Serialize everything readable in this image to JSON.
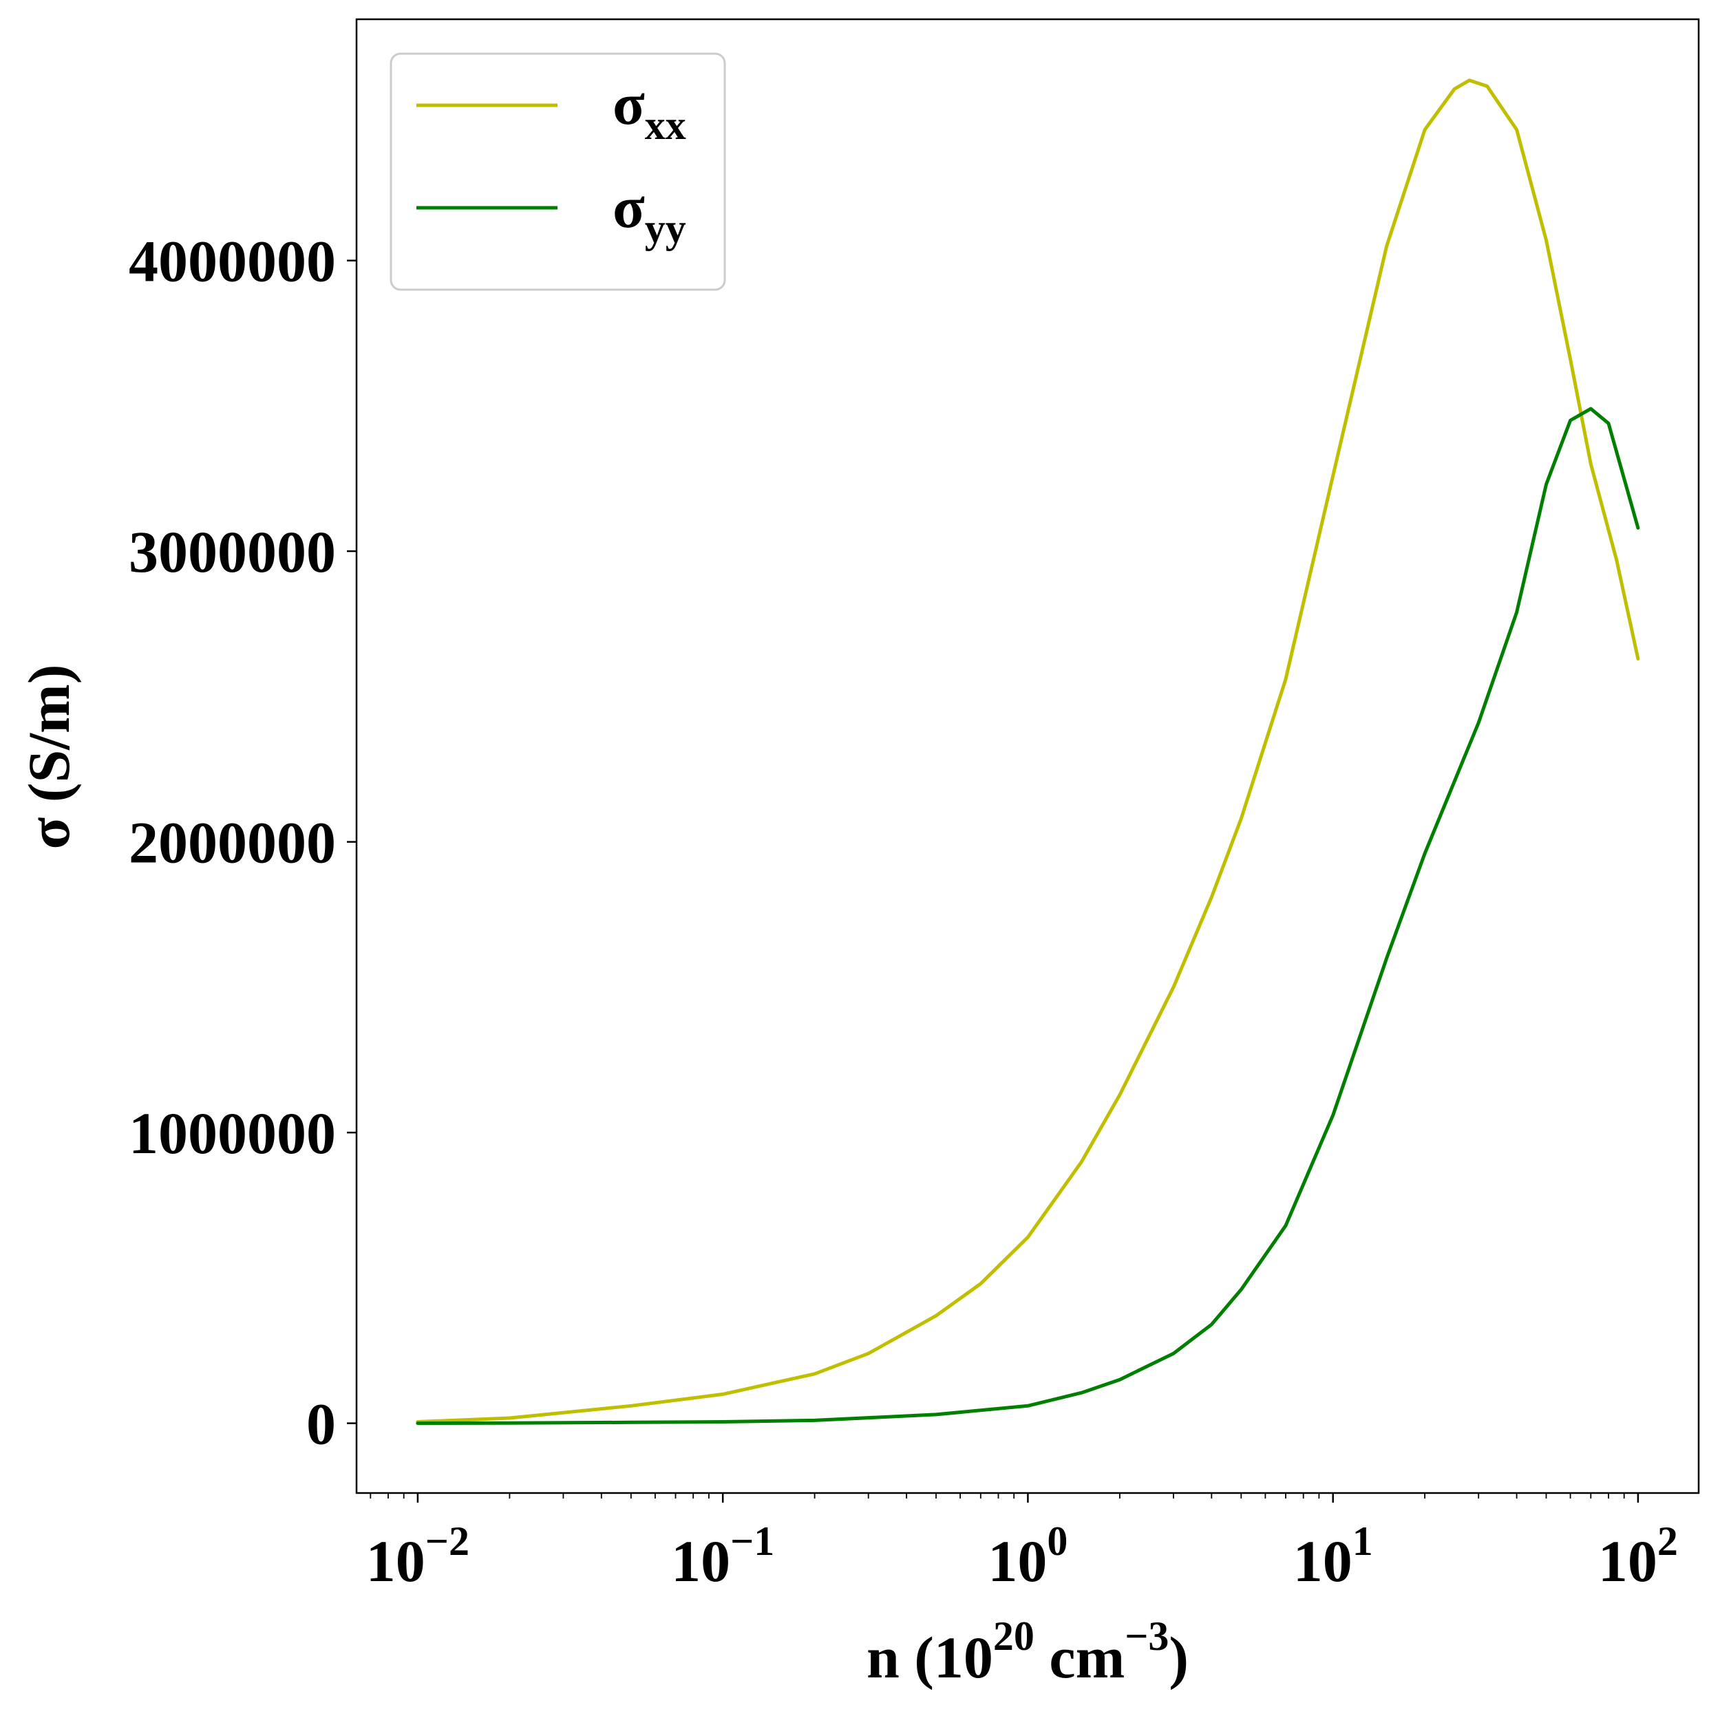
{
  "chart_data": {
    "type": "line",
    "xscale": "log",
    "xlim": [
      0.0063,
      158
    ],
    "ylim": [
      -240000,
      4830000
    ],
    "x_ticks": [
      {
        "value": 0.01,
        "base": "10",
        "exp": "−2"
      },
      {
        "value": 0.1,
        "base": "10",
        "exp": "−1"
      },
      {
        "value": 1,
        "base": "10",
        "exp": "0"
      },
      {
        "value": 10,
        "base": "10",
        "exp": "1"
      },
      {
        "value": 100,
        "base": "10",
        "exp": "2"
      }
    ],
    "y_ticks": [
      {
        "value": 0,
        "label": "0"
      },
      {
        "value": 1000000,
        "label": "1000000"
      },
      {
        "value": 2000000,
        "label": "2000000"
      },
      {
        "value": 3000000,
        "label": "3000000"
      },
      {
        "value": 4000000,
        "label": "4000000"
      }
    ],
    "xlabel": {
      "pre": "n (10",
      "sup1": "20",
      "mid": " cm",
      "sup2": "−3",
      "post": ")"
    },
    "ylabel": "σ (S/m)",
    "grid": false,
    "legend": {
      "position": "top-left"
    },
    "series": [
      {
        "name": "σ",
        "subscript": "xx",
        "color": "#bfbf00",
        "x": [
          0.01,
          0.02,
          0.05,
          0.1,
          0.2,
          0.3,
          0.5,
          0.7,
          1,
          1.5,
          2,
          3,
          4,
          5,
          7,
          10,
          15,
          20,
          25,
          28,
          32,
          40,
          50,
          60,
          70,
          85,
          100
        ],
        "y": [
          5000,
          18000,
          60000,
          100000,
          170000,
          240000,
          370000,
          480000,
          640000,
          900000,
          1130000,
          1500000,
          1810000,
          2080000,
          2560000,
          3260000,
          4050000,
          4450000,
          4590000,
          4620000,
          4600000,
          4450000,
          4070000,
          3660000,
          3300000,
          2970000,
          2630000
        ]
      },
      {
        "name": "σ",
        "subscript": "yy",
        "color": "#007f00",
        "x": [
          0.01,
          0.02,
          0.05,
          0.1,
          0.2,
          0.5,
          1,
          1.5,
          2,
          3,
          4,
          5,
          7,
          10,
          15,
          20,
          30,
          40,
          50,
          60,
          70,
          80,
          100
        ],
        "y": [
          0,
          1000,
          3000,
          5000,
          10000,
          30000,
          60000,
          105000,
          150000,
          240000,
          340000,
          460000,
          680000,
          1060000,
          1600000,
          1960000,
          2410000,
          2790000,
          3230000,
          3450000,
          3490000,
          3440000,
          3080000
        ]
      }
    ]
  }
}
